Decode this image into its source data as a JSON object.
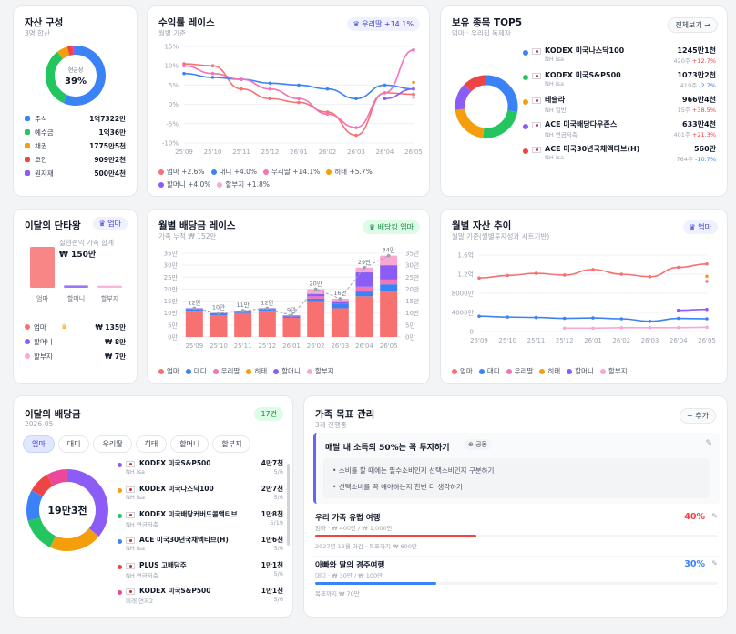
{
  "asset": {
    "title": "자산 구성",
    "sub": "3명 합산",
    "center_label": "현금성",
    "center_pct": "39%",
    "items": [
      {
        "label": "주식",
        "value": "1억7322만",
        "color": "#3b82f6"
      },
      {
        "label": "예수금",
        "value": "1억36만",
        "color": "#22c55e"
      },
      {
        "label": "채권",
        "value": "1775만5천",
        "color": "#f59e0b"
      },
      {
        "label": "코인",
        "value": "909만2천",
        "color": "#ef4444"
      },
      {
        "label": "원자재",
        "value": "500만4천",
        "color": "#8b5cf6"
      }
    ]
  },
  "race": {
    "title": "수익률 레이스",
    "sub": "월별 기준",
    "badge": "우리딸 +14.1%",
    "yticks": [
      "15%",
      "10%",
      "5%",
      "0%",
      "-5%",
      "-10%"
    ],
    "xticks": [
      "25'09",
      "25'10",
      "25'11",
      "25'12",
      "26'01",
      "26'02",
      "26'03",
      "26'04",
      "26'05"
    ],
    "legend": [
      {
        "label": "엄마 +2.6%",
        "color": "#f87171"
      },
      {
        "label": "대디 +4.0%",
        "color": "#3b82f6"
      },
      {
        "label": "우리딸 +14.1%",
        "color": "#f472b6"
      },
      {
        "label": "히태 +5.7%",
        "color": "#f59e0b"
      },
      {
        "label": "할머니 +4.0%",
        "color": "#8b5cf6"
      },
      {
        "label": "할부지 +1.8%",
        "color": "#f9a8d4"
      }
    ]
  },
  "top5": {
    "title": "보유 종목 TOP5",
    "sub": "엄마 · 우리집 독제자",
    "button": "전체보기 →",
    "items": [
      {
        "name": "KODEX 미국나스닥100",
        "acct": "NH isa",
        "value": "1245만1천",
        "detail": "420주",
        "change": "+12.7%",
        "color": "#3b82f6",
        "neg": false
      },
      {
        "name": "KODEX 미국S&P500",
        "acct": "NH isa",
        "value": "1073만2천",
        "detail": "419주",
        "change": "-2.7%",
        "color": "#22c55e",
        "neg": true
      },
      {
        "name": "테슬라",
        "acct": "NH 일반",
        "value": "966만4천",
        "detail": "15주",
        "change": "+38.5%",
        "color": "#f59e0b",
        "neg": false
      },
      {
        "name": "ACE 미국배당다우존스",
        "acct": "NH 연금저축",
        "value": "633만4천",
        "detail": "401주",
        "change": "+21.3%",
        "color": "#8b5cf6",
        "neg": false
      },
      {
        "name": "ACE 미국30년국채액티브(H)",
        "acct": "NH isa",
        "value": "560만",
        "detail": "764주",
        "change": "-10.7%",
        "color": "#ef4444",
        "neg": true
      }
    ]
  },
  "king": {
    "title": "이달의 단타왕",
    "badge": "엄마",
    "cap": "실현손익 가족 합계",
    "total": "₩ 150만",
    "bar_labels": [
      "엄마",
      "할머니",
      "할부지"
    ],
    "bar_values": [
      135,
      8,
      7
    ],
    "items": [
      {
        "label": "엄마",
        "value": "₩ 135만",
        "color": "#f87171"
      },
      {
        "label": "할머니",
        "value": "₩ 8만",
        "color": "#8b5cf6"
      },
      {
        "label": "할부지",
        "value": "₩ 7만",
        "color": "#f9a8d4"
      }
    ]
  },
  "divrace": {
    "title": "월별 배당금 레이스",
    "sub": "가족 누적 ₩ 152만",
    "badge": "배당킹 엄마",
    "yticks": [
      "35만",
      "30만",
      "25만",
      "20만",
      "15만",
      "10만",
      "5만",
      "0만"
    ],
    "xticks": [
      "25'09",
      "25'10",
      "25'11",
      "25'12",
      "26'01",
      "26'02",
      "26'03",
      "26'04",
      "26'05"
    ],
    "totals": [
      "12만",
      "10만",
      "11만",
      "12만",
      "9만",
      "20만",
      "16만",
      "29만",
      "34만"
    ],
    "legend": [
      {
        "label": "엄마",
        "color": "#f87171"
      },
      {
        "label": "대디",
        "color": "#3b82f6"
      },
      {
        "label": "우리딸",
        "color": "#f472b6"
      },
      {
        "label": "히태",
        "color": "#f59e0b"
      },
      {
        "label": "할머니",
        "color": "#8b5cf6"
      },
      {
        "label": "할부지",
        "color": "#f9a8d4"
      }
    ]
  },
  "assettrend": {
    "title": "월별 자산 추이",
    "sub": "월말 기준(월별투자성과 시트기반)",
    "badge": "엄마",
    "yticks": [
      "1.6억",
      "1.2억",
      "8000만",
      "4000만",
      "0"
    ],
    "xticks": [
      "25'09",
      "25'10",
      "25'11",
      "25'12",
      "26'01",
      "26'02",
      "26'03",
      "26'04",
      "26'05"
    ],
    "legend": [
      {
        "label": "엄마",
        "color": "#f87171"
      },
      {
        "label": "대디",
        "color": "#3b82f6"
      },
      {
        "label": "우리딸",
        "color": "#f472b6"
      },
      {
        "label": "히태",
        "color": "#f59e0b"
      },
      {
        "label": "할머니",
        "color": "#8b5cf6"
      },
      {
        "label": "할부지",
        "color": "#f9a8d4"
      }
    ]
  },
  "dividend": {
    "title": "이달의 배당금",
    "sub": "2026-05",
    "badge": "17건",
    "tabs": [
      "엄마",
      "대디",
      "우리딸",
      "히태",
      "할머니",
      "할부지"
    ],
    "center": "19만3천",
    "items": [
      {
        "name": "KODEX 미국S&P500",
        "acct": "NH isa",
        "amount": "4만7천",
        "date": "5/6",
        "color": "#8b5cf6"
      },
      {
        "name": "KODEX 미국나스닥100",
        "acct": "NH isa",
        "amount": "2만7천",
        "date": "5/6",
        "color": "#f59e0b"
      },
      {
        "name": "KODEX 미국배당커버드콜액티브",
        "acct": "NH 연금저축",
        "amount": "1만8천",
        "date": "5/19",
        "color": "#22c55e"
      },
      {
        "name": "ACE 미국30년국채액티브(H)",
        "acct": "NH isa",
        "amount": "1만6천",
        "date": "5/6",
        "color": "#3b82f6"
      },
      {
        "name": "PLUS 고배당주",
        "acct": "NH 연금저축",
        "amount": "1만1천",
        "date": "5/6",
        "color": "#ef4444"
      },
      {
        "name": "KODEX 미국S&P500",
        "acct": "미래 연저2",
        "amount": "1만1천",
        "date": "5/6",
        "color": "#ec4899"
      }
    ]
  },
  "goals": {
    "title": "가족 목표 관리",
    "sub": "3개 진행중",
    "add_button": "+ 추가",
    "main_goal": "매달 내 소득의 50%는 꼭 투자하기",
    "main_tag": "공동",
    "notes": [
      "소비를 할 때에는 필수소비인지 선택소비인지 구분하기",
      "선택소비를 꼭 해야하는지 한번 더 생각하기"
    ],
    "items": [
      {
        "title": "우리 가족 유럽 여행",
        "meta": "엄마 · ₩ 400만 / ₩ 1,000만",
        "pct": "40%",
        "progress": 0.4,
        "color": "#ef4444",
        "foot": "2027년 12월 마감 · 목표까지 ₩ 600만"
      },
      {
        "title": "아빠와 딸의 경주여행",
        "meta": "대디 · ₩ 30만 / ₩ 100만",
        "pct": "30%",
        "progress": 0.3,
        "color": "#3b82f6",
        "foot": "목표까지 ₩ 70만"
      }
    ]
  },
  "chart_data": [
    {
      "type": "line",
      "title": "수익률 레이스",
      "x": [
        "25'09",
        "25'10",
        "25'11",
        "25'12",
        "26'01",
        "26'02",
        "26'03",
        "26'04",
        "26'05"
      ],
      "ylim": [
        -10,
        15
      ],
      "series": [
        {
          "name": "엄마",
          "values": [
            10.5,
            10.0,
            4.0,
            1.5,
            0.5,
            -2.0,
            -8.0,
            3.0,
            2.6
          ]
        },
        {
          "name": "대디",
          "values": [
            8.0,
            7.0,
            6.5,
            5.5,
            5.0,
            4.0,
            1.5,
            5.0,
            4.0
          ]
        },
        {
          "name": "우리딸",
          "values": [
            10.0,
            8.0,
            6.5,
            4.0,
            1.5,
            -2.5,
            -6.0,
            3.0,
            14.1
          ]
        },
        {
          "name": "히태",
          "values": [
            null,
            null,
            null,
            null,
            null,
            null,
            null,
            null,
            5.7
          ]
        },
        {
          "name": "할머니",
          "values": [
            null,
            null,
            null,
            null,
            null,
            null,
            null,
            1.5,
            4.0
          ]
        },
        {
          "name": "할부지",
          "values": [
            null,
            null,
            null,
            null,
            null,
            null,
            null,
            null,
            1.8
          ]
        }
      ]
    },
    {
      "type": "bar",
      "title": "월별 배당금 레이스",
      "categories": [
        "25'09",
        "25'10",
        "25'11",
        "25'12",
        "26'01",
        "26'02",
        "26'03",
        "26'04",
        "26'05"
      ],
      "ylim": [
        0,
        35
      ],
      "series": [
        {
          "name": "엄마",
          "values": [
            11,
            9,
            10,
            11,
            8,
            15,
            12,
            17,
            19
          ]
        },
        {
          "name": "대디",
          "values": [
            0.5,
            0.5,
            0.5,
            0.5,
            0.5,
            1,
            2,
            2,
            3
          ]
        },
        {
          "name": "우리딸",
          "values": [
            0,
            0,
            0,
            0,
            0,
            1,
            0,
            2,
            2
          ]
        },
        {
          "name": "히태",
          "values": [
            0,
            0,
            0,
            0,
            0,
            0,
            0,
            0,
            0
          ]
        },
        {
          "name": "할머니",
          "values": [
            0.5,
            0.5,
            0.5,
            0.5,
            0.5,
            1,
            1,
            6,
            6
          ]
        },
        {
          "name": "할부지",
          "values": [
            0,
            0,
            0,
            0,
            0,
            2,
            1,
            2,
            4
          ]
        }
      ]
    },
    {
      "type": "line",
      "title": "월별 자산 추이",
      "x": [
        "25'09",
        "25'10",
        "25'11",
        "25'12",
        "26'01",
        "26'02",
        "26'03",
        "26'04",
        "26'05"
      ],
      "ylim": [
        0,
        18000
      ],
      "series": [
        {
          "name": "엄마",
          "values": [
            12600,
            13200,
            13700,
            13300,
            14600,
            13500,
            12900,
            15100,
            15900
          ]
        },
        {
          "name": "대디",
          "values": [
            3600,
            3400,
            3300,
            3100,
            3200,
            3000,
            2400,
            3100,
            3000
          ]
        },
        {
          "name": "우리딸",
          "values": [
            null,
            null,
            null,
            null,
            null,
            null,
            null,
            null,
            11800
          ]
        },
        {
          "name": "히태",
          "values": [
            null,
            null,
            null,
            null,
            null,
            null,
            null,
            null,
            13000
          ]
        },
        {
          "name": "할머니",
          "values": [
            null,
            null,
            null,
            null,
            null,
            null,
            null,
            5000,
            5200
          ]
        },
        {
          "name": "할부지",
          "values": [
            null,
            null,
            null,
            800,
            800,
            900,
            900,
            900,
            1000
          ]
        }
      ]
    },
    {
      "type": "pie",
      "title": "자산 구성",
      "categories": [
        "주식",
        "예수금",
        "채권",
        "코인",
        "원자재"
      ],
      "values": [
        17322,
        10036,
        1775.5,
        909.2,
        500.4
      ]
    },
    {
      "type": "pie",
      "title": "이달의 배당금",
      "categories": [
        "KODEX 미국S&P500",
        "KODEX 미국나스닥100",
        "KODEX 미국배당커버드콜액티브",
        "ACE 미국30년국채액티브(H)",
        "PLUS 고배당주",
        "KODEX 미국S&P500"
      ],
      "values": [
        4.7,
        2.7,
        1.8,
        1.6,
        1.1,
        1.1
      ]
    }
  ]
}
